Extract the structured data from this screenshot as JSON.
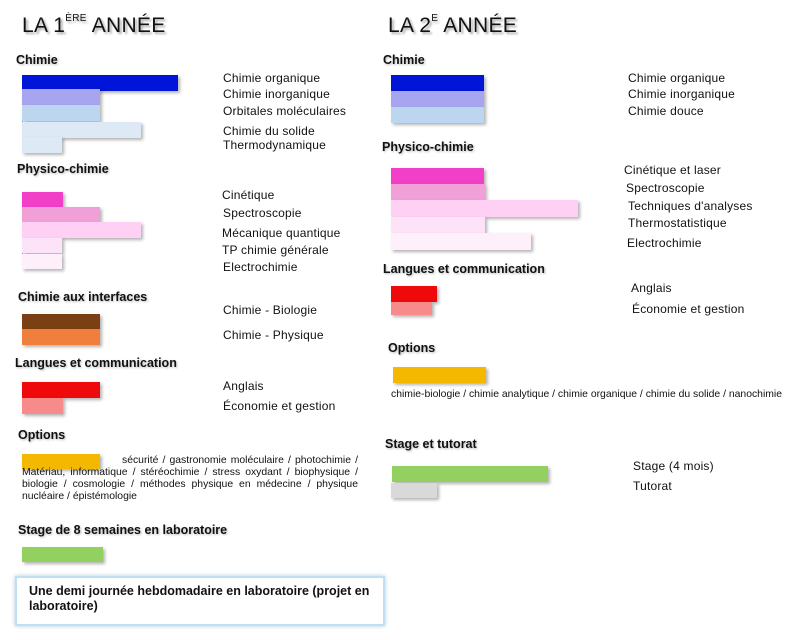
{
  "year1": {
    "title_prefix": "LA 1",
    "title_sup": "ÈRE",
    "title_suffix": " ANNÉE",
    "sections": {
      "chimie": {
        "title": "Chimie",
        "items": [
          "Chimie organique",
          "Chimie inorganique",
          "Orbitales moléculaires",
          "Chimie du solide",
          "Thermodynamique"
        ]
      },
      "physico": {
        "title": "Physico-chimie",
        "items": [
          "Cinétique",
          "Spectroscopie",
          "Mécanique quantique",
          "TP chimie générale",
          "Electrochimie"
        ]
      },
      "interfaces": {
        "title": "Chimie aux interfaces",
        "items": [
          "Chimie - Biologie",
          "Chimie - Physique"
        ]
      },
      "langues": {
        "title": "Langues et communication",
        "items": [
          "Anglais",
          "Économie et gestion"
        ]
      },
      "options": {
        "title": "Options",
        "text_first": "sécurité / gastronomie moléculaire /",
        "text_rest": "photochimie / Matériau, informatique / stéréochimie / stress oxydant / biophysique / biologie / cosmologie / méthodes physique en médecine / physique nucléaire / épistémologie"
      },
      "stage": {
        "title": "Stage de 8 semaines en laboratoire"
      }
    },
    "note": "Une demi journée hebdomadaire en laboratoire (projet en laboratoire)"
  },
  "year2": {
    "title_prefix": "LA 2",
    "title_sup": "E",
    "title_suffix": " ANNÉE",
    "sections": {
      "chimie": {
        "title": "Chimie",
        "items": [
          "Chimie organique",
          "Chimie inorganique",
          "Chimie douce"
        ]
      },
      "physico": {
        "title": "Physico-chimie",
        "items": [
          "Cinétique et laser",
          "Spectroscopie",
          "Techniques d'analyses",
          "Thermostatistique",
          "Electrochimie"
        ]
      },
      "langues": {
        "title": "Langues et communication",
        "items": [
          "Anglais",
          "Économie et gestion"
        ]
      },
      "options": {
        "title": "Options",
        "text": "chimie-biologie / chimie analytique / chimie organique / chimie du solide / nanochimie"
      },
      "stage": {
        "title": "Stage et tutorat",
        "items": [
          "Stage (4 mois)",
          "Tutorat"
        ]
      }
    }
  },
  "colors": {
    "chimie": [
      "#0015d8",
      "#a7a4f0",
      "#bdd6ef",
      "#dde9f5"
    ],
    "physico": [
      "#f13fc7",
      "#f0a0d6",
      "#fdd0f4",
      "#fde3f7",
      "#fdf0fb"
    ],
    "interfaces": [
      "#7a3f13",
      "#f07f3d"
    ],
    "langues": [
      "#ee0a0a",
      "#f78a8a"
    ],
    "options": "#f5b800",
    "stage": "#92d160",
    "tutorat": "#d9d9d9",
    "note_border": "#bfe0f0"
  }
}
